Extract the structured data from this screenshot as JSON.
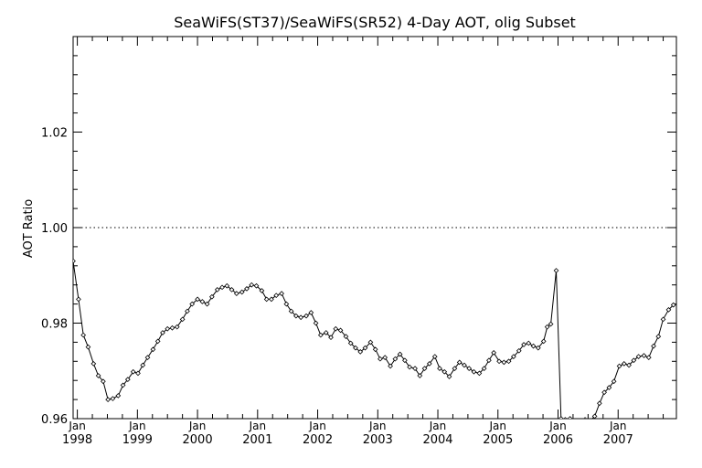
{
  "chart_data": {
    "type": "line",
    "title": "SeaWiFS(ST37)/SeaWiFS(SR52) 4-Day AOT, olig Subset",
    "xlabel": "",
    "ylabel": "AOT Ratio",
    "ylim": [
      0.96,
      1.04
    ],
    "xlim": [
      1997.93,
      2007.97
    ],
    "yticks": [
      {
        "value": 0.96,
        "label": "0.96"
      },
      {
        "value": 0.98,
        "label": "0.98"
      },
      {
        "value": 1.0,
        "label": "1.00"
      },
      {
        "value": 1.02,
        "label": "1.02"
      }
    ],
    "xticks": [
      {
        "value": 1998,
        "month": "Jan",
        "year": "1998"
      },
      {
        "value": 1999,
        "month": "Jan",
        "year": "1999"
      },
      {
        "value": 2000,
        "month": "Jan",
        "year": "2000"
      },
      {
        "value": 2001,
        "month": "Jan",
        "year": "2001"
      },
      {
        "value": 2002,
        "month": "Jan",
        "year": "2002"
      },
      {
        "value": 2003,
        "month": "Jan",
        "year": "2003"
      },
      {
        "value": 2004,
        "month": "Jan",
        "year": "2004"
      },
      {
        "value": 2005,
        "month": "Jan",
        "year": "2005"
      },
      {
        "value": 2006,
        "month": "Jan",
        "year": "2006"
      },
      {
        "value": 2007,
        "month": "Jan",
        "year": "2007"
      }
    ],
    "reference_line": {
      "y": 1.0,
      "style": "dotted"
    },
    "grid": false,
    "series": [
      {
        "marker": "diamond",
        "x": [
          1997.93,
          1998.02,
          1998.1,
          1998.18,
          1998.27,
          1998.35,
          1998.43,
          1998.51,
          1998.59,
          1998.68,
          1998.76,
          1998.84,
          1998.93,
          1999.01,
          1999.09,
          1999.17,
          1999.26,
          1999.34,
          1999.42,
          1999.5,
          1999.58,
          1999.66,
          1999.75,
          1999.83,
          1999.91,
          2000.0,
          2000.08,
          2000.16,
          2000.24,
          2000.33,
          2000.41,
          2000.49,
          2000.57,
          2000.65,
          2000.74,
          2000.82,
          2000.9,
          2000.98,
          2001.07,
          2001.15,
          2001.23,
          2001.31,
          2001.4,
          2001.48,
          2001.56,
          2001.64,
          2001.72,
          2001.81,
          2001.89,
          2001.97,
          2002.05,
          2002.14,
          2002.22,
          2002.3,
          2002.38,
          2002.47,
          2002.55,
          2002.63,
          2002.71,
          2002.79,
          2002.88,
          2002.96,
          2003.04,
          2003.12,
          2003.21,
          2003.29,
          2003.37,
          2003.45,
          2003.53,
          2003.62,
          2003.7,
          2003.78,
          2003.86,
          2003.95,
          2004.03,
          2004.11,
          2004.19,
          2004.28,
          2004.36,
          2004.44,
          2004.52,
          2004.6,
          2004.69,
          2004.77,
          2004.85,
          2004.93,
          2005.02,
          2005.1,
          2005.18,
          2005.26,
          2005.35,
          2005.43,
          2005.51,
          2005.59,
          2005.67,
          2005.76,
          2005.82,
          2005.88,
          2005.97,
          2006.05,
          2006.12,
          2006.2,
          2006.45,
          2006.53,
          2006.61,
          2006.69,
          2006.77,
          2006.85,
          2006.93,
          2007.02,
          2007.1,
          2007.18,
          2007.26,
          2007.34,
          2007.43,
          2007.51,
          2007.59,
          2007.67,
          2007.75,
          2007.84,
          2007.92
        ],
        "y": [
          0.993,
          0.985,
          0.9775,
          0.975,
          0.9715,
          0.969,
          0.9678,
          0.964,
          0.9642,
          0.9648,
          0.967,
          0.9682,
          0.9698,
          0.9695,
          0.9712,
          0.9728,
          0.9745,
          0.9762,
          0.978,
          0.9788,
          0.979,
          0.9792,
          0.9808,
          0.9825,
          0.984,
          0.985,
          0.9845,
          0.984,
          0.9855,
          0.987,
          0.9875,
          0.9878,
          0.987,
          0.9862,
          0.9865,
          0.9872,
          0.988,
          0.9878,
          0.9868,
          0.985,
          0.985,
          0.9858,
          0.9862,
          0.984,
          0.9825,
          0.9815,
          0.9812,
          0.9815,
          0.9822,
          0.98,
          0.9775,
          0.978,
          0.977,
          0.9788,
          0.9785,
          0.9772,
          0.9758,
          0.9748,
          0.974,
          0.9748,
          0.976,
          0.9745,
          0.9725,
          0.9728,
          0.971,
          0.9725,
          0.9735,
          0.9722,
          0.9708,
          0.9705,
          0.969,
          0.9705,
          0.9715,
          0.973,
          0.9705,
          0.9698,
          0.9688,
          0.9705,
          0.9718,
          0.9712,
          0.9705,
          0.9698,
          0.9695,
          0.9705,
          0.9722,
          0.9738,
          0.972,
          0.9718,
          0.972,
          0.973,
          0.9742,
          0.9755,
          0.9758,
          0.9752,
          0.9748,
          0.9762,
          0.9792,
          0.9798,
          0.991,
          0.96,
          0.9598,
          0.96,
          0.9598,
          0.9595,
          0.9605,
          0.9632,
          0.9655,
          0.9665,
          0.9678,
          0.971,
          0.9715,
          0.9712,
          0.9722,
          0.973,
          0.9732,
          0.9728,
          0.9752,
          0.9772,
          0.9808,
          0.9828,
          0.9838
        ]
      }
    ]
  }
}
